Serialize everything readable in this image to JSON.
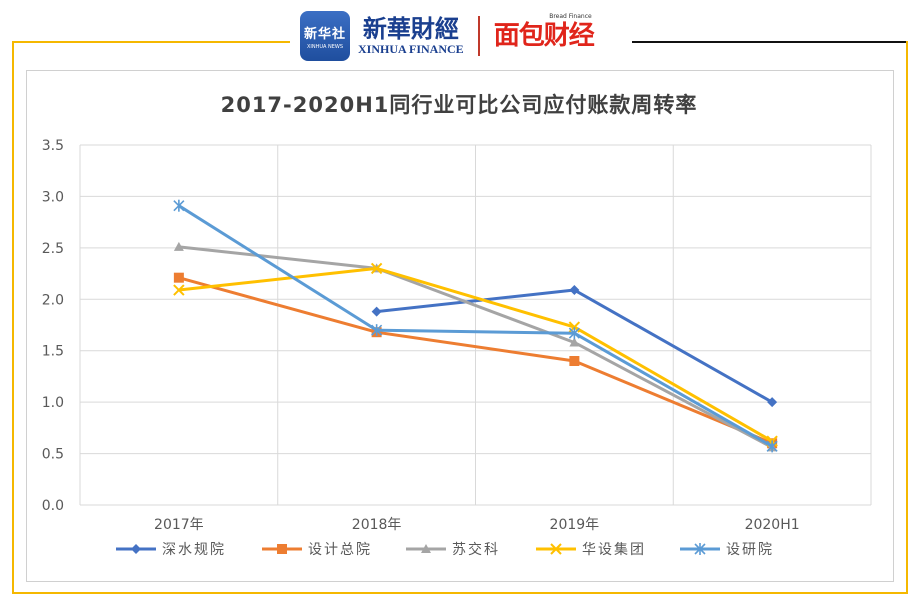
{
  "header": {
    "xinhua_badge_cn": "新华社",
    "xinhua_badge_en": "XINHUA NEWS",
    "xinhua_finance_cn": "新華財經",
    "xinhua_finance_en": "XINHUA FINANCE",
    "bread_finance_cn": "面包财经",
    "bread_finance_en": "Bread Finance"
  },
  "colors": {
    "frame_accent": "#f5b800",
    "深水规院": "#4472c4",
    "设计总院": "#ed7d31",
    "苏交科": "#a5a5a5",
    "华设集团": "#ffc000",
    "设研院": "#5b9bd5"
  },
  "chart_data": {
    "type": "line",
    "title": "2017-2020H1同行业可比公司应付账款周转率",
    "categories": [
      "2017年",
      "2018年",
      "2019年",
      "2020H1"
    ],
    "ylim": [
      0,
      3.5
    ],
    "yticks": [
      "0.0",
      "0.5",
      "1.0",
      "1.5",
      "2.0",
      "2.5",
      "3.0",
      "3.5"
    ],
    "grid": true,
    "legend_position": "bottom",
    "series": [
      {
        "name": "深水规院",
        "values": [
          null,
          1.88,
          2.09,
          1.0
        ],
        "marker": "diamond",
        "color": "#4472c4"
      },
      {
        "name": "设计总院",
        "values": [
          2.21,
          1.68,
          1.4,
          0.6
        ],
        "marker": "square",
        "color": "#ed7d31"
      },
      {
        "name": "苏交科",
        "values": [
          2.51,
          2.3,
          1.58,
          0.56
        ],
        "marker": "triangle",
        "color": "#a5a5a5"
      },
      {
        "name": "华设集团",
        "values": [
          2.09,
          2.3,
          1.73,
          0.62
        ],
        "marker": "x",
        "color": "#ffc000"
      },
      {
        "name": "设研院",
        "values": [
          2.91,
          1.7,
          1.67,
          0.57
        ],
        "marker": "star",
        "color": "#5b9bd5"
      }
    ]
  }
}
